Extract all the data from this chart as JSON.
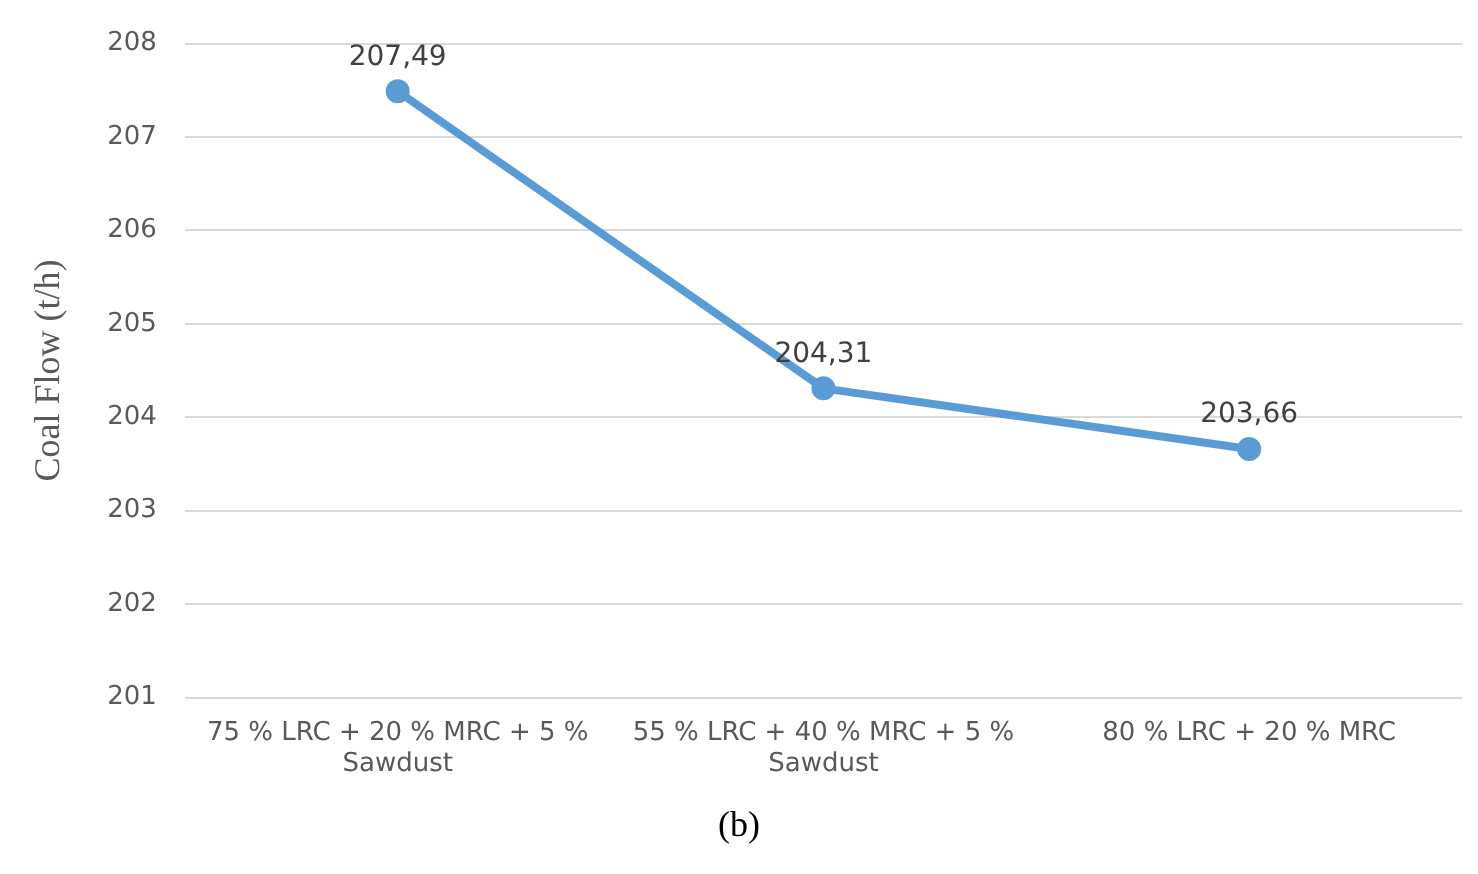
{
  "chart_data": {
    "type": "line",
    "ylabel": "Coal Flow (t/h)",
    "annotations": [
      "(b)"
    ],
    "categories": [
      "75 % LRC + 20 % MRC + 5 % Sawdust",
      "55 % LRC + 40 % MRC + 5 % Sawdust",
      "80 % LRC + 20 % MRC"
    ],
    "series": [
      {
        "color": "#5b9bd5",
        "values": [
          207.49,
          204.31,
          203.66
        ],
        "value_labels": [
          "207,49",
          "204,31",
          "203,66"
        ]
      }
    ],
    "ylim": [
      201,
      208
    ],
    "yticks": [
      201,
      202,
      203,
      204,
      205,
      206,
      207,
      208
    ],
    "grid": "y",
    "legend": false,
    "marker": "circle"
  }
}
